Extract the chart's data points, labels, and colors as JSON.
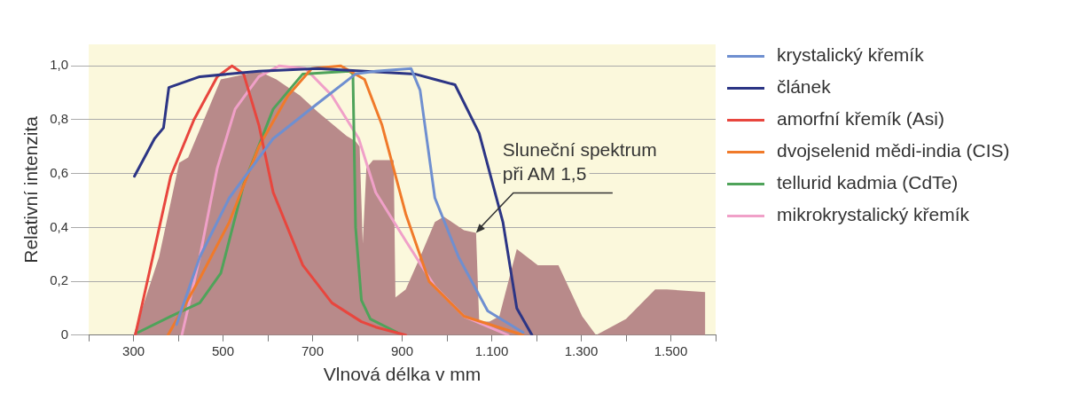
{
  "chart_data": {
    "type": "line",
    "xlabel": "Vlnová délka v mm",
    "ylabel": "Relativní intenzita",
    "xlim": [
      200,
      1600
    ],
    "ylim": [
      0,
      1.08
    ],
    "xticks": [
      {
        "value": 200,
        "label": null
      },
      {
        "value": 300,
        "label": "300"
      },
      {
        "value": 400,
        "label": null
      },
      {
        "value": 500,
        "label": "500"
      },
      {
        "value": 600,
        "label": null
      },
      {
        "value": 700,
        "label": "700"
      },
      {
        "value": 800,
        "label": null
      },
      {
        "value": 900,
        "label": "900"
      },
      {
        "value": 1000,
        "label": null
      },
      {
        "value": 1100,
        "label": "1.100"
      },
      {
        "value": 1200,
        "label": null
      },
      {
        "value": 1300,
        "label": "1.300"
      },
      {
        "value": 1400,
        "label": null
      },
      {
        "value": 1500,
        "label": "1.500"
      },
      {
        "value": 1600,
        "label": null
      }
    ],
    "yticks": [
      {
        "value": 0,
        "label": "0"
      },
      {
        "value": 0.2,
        "label": "0,2"
      },
      {
        "value": 0.4,
        "label": "0,4"
      },
      {
        "value": 0.6,
        "label": "0,6"
      },
      {
        "value": 0.8,
        "label": "0,8"
      },
      {
        "value": 1,
        "label": "1,0"
      }
    ],
    "grid": "y",
    "legend": "right",
    "marker": "none",
    "line_style": "solid",
    "annotations": [
      {
        "text": "Sluneční spektrum při AM 1,5",
        "x": 1065,
        "y": 0.38
      }
    ],
    "series": [
      {
        "type": "area",
        "color": "#b88a8a",
        "x": [
          300,
          357,
          402,
          422,
          495,
          580,
          619,
          672,
          711,
          776,
          796,
          805,
          812,
          820,
          835,
          881,
          885,
          908,
          940,
          973,
          993,
          1038,
          1065,
          1072,
          1095,
          1117,
          1156,
          1203,
          1249,
          1302,
          1333,
          1400,
          1465,
          1491,
          1577
        ],
        "values": [
          0,
          0.29,
          0.64,
          0.66,
          0.95,
          0.98,
          0.95,
          0.89,
          0.83,
          0.74,
          0.72,
          0.7,
          0.34,
          0.62,
          0.65,
          0.65,
          0.14,
          0.17,
          0.29,
          0.42,
          0.44,
          0.39,
          0.38,
          0.05,
          0.05,
          0.07,
          0.32,
          0.26,
          0.26,
          0.07,
          0,
          0.06,
          0.17,
          0.17,
          0.16
        ]
      },
      {
        "name": "krystalický křemík",
        "color": "#6f8fd0",
        "x": [
          396,
          448,
          514,
          612,
          711,
          796,
          841,
          920,
          940,
          973,
          1026,
          1091,
          1170
        ],
        "values": [
          0.04,
          0.29,
          0.51,
          0.73,
          0.86,
          0.97,
          0.98,
          0.99,
          0.91,
          0.51,
          0.29,
          0.09,
          0.01
        ]
      },
      {
        "name": "článek",
        "color": "#2c3585",
        "x": [
          302,
          347,
          367,
          379,
          448,
          580,
          711,
          928,
          973,
          1018,
          1072,
          1125,
          1156,
          1190
        ],
        "values": [
          0.59,
          0.73,
          0.77,
          0.92,
          0.96,
          0.98,
          0.99,
          0.97,
          0.95,
          0.93,
          0.75,
          0.42,
          0.1,
          0
        ]
      },
      {
        "name": "amorfní křemík (Asi)",
        "color": "#e8463e",
        "x": [
          304,
          343,
          383,
          435,
          487,
          520,
          546,
          580,
          612,
          678,
          743,
          809,
          841,
          908
        ],
        "values": [
          0,
          0.29,
          0.59,
          0.8,
          0.96,
          1,
          0.97,
          0.78,
          0.53,
          0.26,
          0.12,
          0.05,
          0.03,
          0
        ]
      },
      {
        "name": "dvojselenid mědi-india (CIS)",
        "color": "#f07a2a",
        "x": [
          377,
          448,
          514,
          580,
          645,
          698,
          763,
          816,
          855,
          908,
          960,
          1038,
          1170
        ],
        "values": [
          0,
          0.21,
          0.42,
          0.7,
          0.89,
          0.99,
          1,
          0.95,
          0.78,
          0.45,
          0.2,
          0.07,
          0
        ]
      },
      {
        "name": "tellurid kadmia (CdTe)",
        "color": "#4fa35a",
        "x": [
          310,
          383,
          448,
          495,
          546,
          612,
          678,
          782,
          790,
          796,
          809,
          829,
          889
        ],
        "values": [
          0.01,
          0.07,
          0.12,
          0.23,
          0.56,
          0.84,
          0.97,
          0.98,
          0.97,
          0.4,
          0.13,
          0.06,
          0.01
        ]
      },
      {
        "name": "mikrokrystalický křemík",
        "color": "#f0a0c8",
        "x": [
          408,
          448,
          487,
          527,
          580,
          625,
          684,
          743,
          803,
          841,
          908,
          973,
          1038,
          1137
        ],
        "values": [
          0,
          0.29,
          0.62,
          0.84,
          0.96,
          1,
          0.99,
          0.89,
          0.73,
          0.53,
          0.35,
          0.18,
          0.07,
          0
        ]
      }
    ]
  }
}
